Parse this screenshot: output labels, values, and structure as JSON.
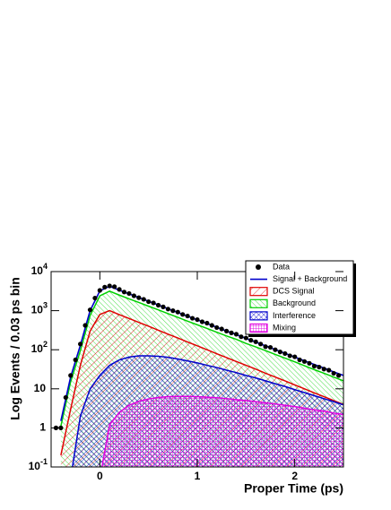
{
  "chart_data": {
    "type": "line",
    "xlabel": "Proper Time (ps)",
    "ylabel": "Log Events / 0.03 ps bin",
    "xlim": [
      -0.5,
      2.5
    ],
    "ylim": [
      0.1,
      10000
    ],
    "log_y": true,
    "xticks": [
      0,
      1,
      2
    ],
    "yticks": [
      {
        "value": 0.1,
        "label": "10",
        "exponent": "-1"
      },
      1,
      10,
      {
        "value": 100,
        "label": "10",
        "exponent": "2"
      },
      {
        "value": 1000,
        "label": "10",
        "exponent": "3"
      },
      {
        "value": 10000,
        "label": "10",
        "exponent": "4"
      }
    ],
    "legend": "upper right",
    "x": [
      -0.4,
      -0.3,
      -0.2,
      -0.1,
      0,
      0.1,
      0.2,
      0.3,
      0.4,
      0.5,
      0.6,
      0.7,
      0.8,
      0.9,
      1,
      1.1,
      1.2,
      1.3,
      1.4,
      1.5,
      1.6,
      1.7,
      1.8,
      1.9,
      2,
      2.1,
      2.2,
      2.3,
      2.4,
      2.5
    ],
    "series": [
      {
        "name": "Data",
        "kind": "points",
        "color": "#000000",
        "x": [
          -0.45,
          -0.4,
          -0.35,
          -0.3,
          -0.25,
          -0.2,
          -0.15,
          -0.1,
          -0.05,
          0,
          0.05,
          0.1,
          0.15,
          0.2,
          0.25,
          0.3,
          0.35,
          0.4,
          0.45,
          0.5,
          0.55,
          0.6,
          0.65,
          0.7,
          0.75,
          0.8,
          0.85,
          0.9,
          0.95,
          1,
          1.05,
          1.1,
          1.15,
          1.2,
          1.25,
          1.3,
          1.35,
          1.4,
          1.45,
          1.5,
          1.55,
          1.6,
          1.65,
          1.7,
          1.75,
          1.8,
          1.85,
          1.9,
          1.95,
          2,
          2.05,
          2.1,
          2.15,
          2.2,
          2.25,
          2.3,
          2.35,
          2.4,
          2.45
        ],
        "values": [
          1,
          1,
          6,
          22,
          55,
          140,
          420,
          1050,
          2100,
          3300,
          4000,
          4300,
          4100,
          3500,
          3000,
          2750,
          2400,
          2150,
          1950,
          1700,
          1580,
          1380,
          1250,
          1100,
          1000,
          920,
          800,
          730,
          640,
          590,
          520,
          480,
          420,
          370,
          340,
          300,
          270,
          250,
          215,
          200,
          175,
          160,
          140,
          120,
          115,
          100,
          88,
          80,
          70,
          66,
          55,
          50,
          45,
          38,
          36,
          32,
          30,
          25,
          22
        ]
      },
      {
        "name": "Signal + Background",
        "kind": "line",
        "color": "#0000cc",
        "values": [
          1.5,
          20,
          130,
          1000,
          3200,
          4200,
          3350,
          2690,
          2160,
          1740,
          1400,
          1120,
          900,
          725,
          580,
          470,
          375,
          300,
          245,
          195,
          157,
          126,
          101,
          81,
          65,
          52,
          42,
          34,
          27,
          22
        ]
      },
      {
        "name": "DCS Signal",
        "kind": "area",
        "pattern": "hatch-red",
        "color": "#e00000",
        "values": [
          0.2,
          3,
          40,
          300,
          800,
          1000,
          790,
          630,
          500,
          400,
          315,
          250,
          200,
          158,
          126,
          100,
          79,
          63,
          50,
          40,
          32,
          25,
          20,
          16,
          12.6,
          10,
          7.9,
          6.3,
          5,
          4
        ]
      },
      {
        "name": "Background",
        "kind": "area",
        "pattern": "hatch-green",
        "color": "#00d000",
        "values": [
          1.1,
          15,
          95,
          750,
          2400,
          3150,
          2500,
          2000,
          1620,
          1300,
          1050,
          840,
          675,
          540,
          435,
          350,
          280,
          225,
          185,
          145,
          118,
          95,
          76,
          61,
          49,
          39,
          31,
          25,
          20,
          16
        ]
      },
      {
        "name": "Interference",
        "kind": "area",
        "pattern": "cross-blue",
        "color": "#0000cc",
        "values": [
          null,
          0.05,
          2,
          10,
          22,
          40,
          55,
          65,
          70,
          70,
          68,
          64,
          58,
          52,
          46,
          40,
          35,
          30,
          26,
          22,
          19,
          16,
          13.5,
          11.5,
          9.5,
          8,
          6.7,
          5.6,
          4.7,
          3.9
        ]
      },
      {
        "name": "Mixing",
        "kind": "area",
        "pattern": "grid-magenta",
        "color": "#e000e0",
        "values": [
          null,
          null,
          null,
          null,
          0.05,
          1.2,
          2.5,
          3.8,
          4.8,
          5.5,
          6,
          6.3,
          6.4,
          6.4,
          6.3,
          6.1,
          5.9,
          5.6,
          5.3,
          5,
          4.7,
          4.4,
          4.1,
          3.8,
          3.5,
          3.2,
          2.9,
          2.7,
          2.4,
          2.2
        ]
      }
    ]
  }
}
